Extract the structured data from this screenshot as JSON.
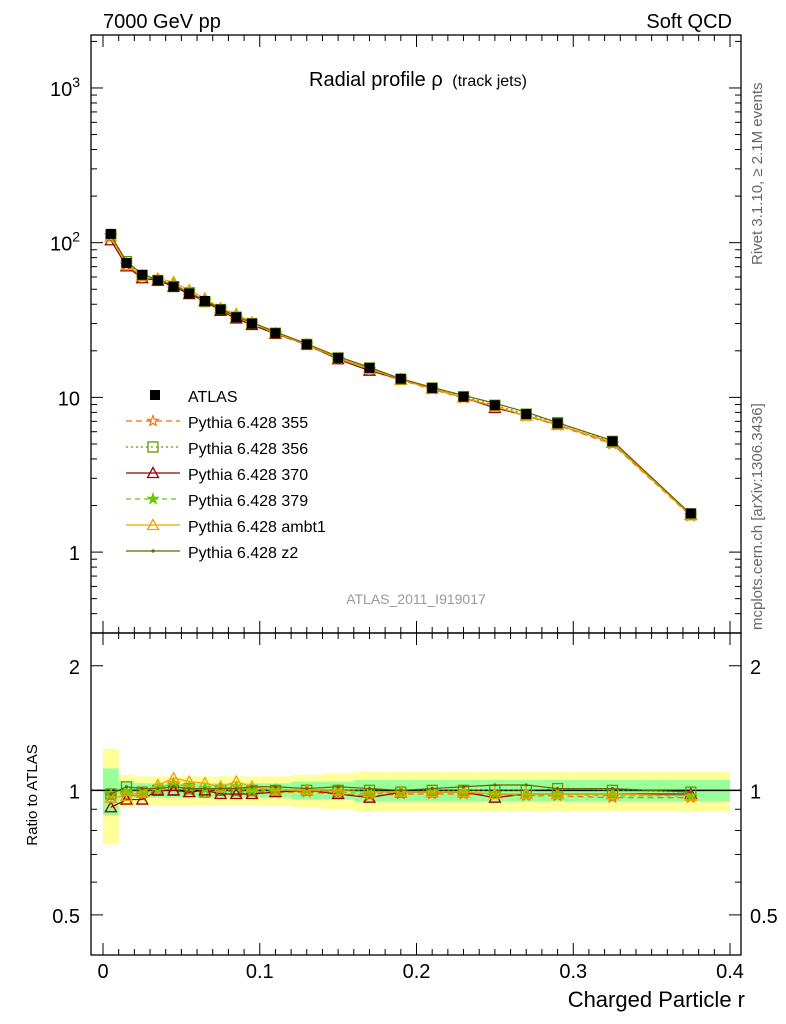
{
  "header": {
    "left": "7000 GeV pp",
    "right": "Soft QCD"
  },
  "side_labels": {
    "rivet": "Rivet 3.1.10, ≥ 2.1M events",
    "mcplots": "mcplots.cern.ch [arXiv:1306.3436]"
  },
  "chart_data": {
    "type": "line",
    "title": "Radial profile ρ",
    "title_suffix": "(track jets)",
    "analysis_label": "ATLAS_2011_I919017",
    "xlabel": "Charged Particle r",
    "ylabel_ratio": "Ratio to ATLAS",
    "xlim": [
      0,
      0.4
    ],
    "ylim_main": [
      0.3,
      2200
    ],
    "ylim_ratio": [
      0.4,
      2.4
    ],
    "y_scale_main": "log",
    "y_scale_ratio": "log",
    "x_ticks": [
      "0",
      "0.1",
      "0.2",
      "0.3",
      "0.4"
    ],
    "main_y_ticks": [
      {
        "value": 1,
        "label": "1"
      },
      {
        "value": 10,
        "label": "10"
      },
      {
        "value": 100,
        "label": "10",
        "exp": "2"
      },
      {
        "value": 1000,
        "label": "10",
        "exp": "3"
      }
    ],
    "ratio_y_ticks": [
      {
        "value": 0.5,
        "label": "0.5"
      },
      {
        "value": 1,
        "label": "1"
      },
      {
        "value": 2,
        "label": "2"
      }
    ],
    "legend_position": "left",
    "x": [
      0.005,
      0.015,
      0.025,
      0.035,
      0.045,
      0.055,
      0.065,
      0.075,
      0.085,
      0.095,
      0.11,
      0.13,
      0.15,
      0.17,
      0.19,
      0.21,
      0.23,
      0.25,
      0.27,
      0.29,
      0.325,
      0.375
    ],
    "x_bin_edges": [
      0,
      0.01,
      0.02,
      0.03,
      0.04,
      0.05,
      0.06,
      0.07,
      0.08,
      0.09,
      0.1,
      0.12,
      0.14,
      0.16,
      0.18,
      0.2,
      0.22,
      0.24,
      0.26,
      0.28,
      0.3,
      0.35,
      0.4
    ],
    "data": {
      "name": "ATLAS",
      "values": [
        114,
        74,
        62,
        57,
        52,
        47,
        42,
        37,
        33,
        30,
        26,
        22,
        18,
        15.5,
        13.2,
        11.5,
        10.1,
        8.9,
        7.8,
        6.8,
        5.2,
        1.78
      ],
      "band_inner": [
        0.13,
        0.05,
        0.04,
        0.04,
        0.04,
        0.04,
        0.04,
        0.04,
        0.04,
        0.04,
        0.04,
        0.05,
        0.05,
        0.06,
        0.06,
        0.06,
        0.06,
        0.06,
        0.06,
        0.06,
        0.06,
        0.06
      ],
      "band_outer": [
        0.26,
        0.09,
        0.08,
        0.08,
        0.08,
        0.08,
        0.08,
        0.08,
        0.08,
        0.08,
        0.08,
        0.09,
        0.1,
        0.11,
        0.11,
        0.11,
        0.11,
        0.11,
        0.11,
        0.11,
        0.11,
        0.11
      ],
      "color": "#000000"
    },
    "series": [
      {
        "name": "Pythia 6.428 355",
        "color": "#ff6600",
        "marker": "star",
        "dash": "6,4",
        "ratios": [
          0.97,
          0.97,
          0.97,
          1.0,
          1.03,
          1.0,
          0.99,
          1.0,
          0.99,
          0.99,
          0.99,
          0.99,
          0.98,
          0.97,
          0.98,
          0.98,
          0.98,
          0.98,
          0.97,
          0.97,
          0.96,
          0.96
        ]
      },
      {
        "name": "Pythia 6.428 356",
        "color": "#669900",
        "marker": "square-open",
        "dash": "2,3",
        "ratios": [
          0.98,
          1.02,
          0.99,
          1.0,
          1.0,
          1.01,
          0.99,
          1.0,
          1.0,
          1.0,
          1.0,
          1.0,
          1.0,
          1.0,
          0.99,
          1.0,
          1.0,
          1.0,
          1.0,
          1.01,
          1.0,
          0.99
        ]
      },
      {
        "name": "Pythia 6.428 370",
        "color": "#990000",
        "marker": "triangle-open",
        "dash": "",
        "ratios": [
          0.91,
          0.95,
          0.95,
          1.0,
          1.0,
          0.99,
          1.0,
          0.98,
          0.98,
          0.98,
          0.99,
          1.0,
          0.98,
          0.96,
          0.99,
          0.99,
          0.99,
          0.96,
          0.98,
          0.98,
          0.98,
          0.98
        ]
      },
      {
        "name": "Pythia 6.428 379",
        "color": "#66cc00",
        "marker": "star-filled",
        "dash": "5,4",
        "ratios": [
          0.98,
          0.99,
          0.98,
          1.01,
          1.04,
          1.02,
          1.01,
          1.01,
          1.02,
          1.0,
          1.0,
          1.0,
          0.99,
          0.98,
          0.99,
          0.99,
          0.99,
          0.98,
          0.97,
          0.98,
          0.97,
          0.97
        ]
      },
      {
        "name": "Pythia 6.428 ambt1",
        "color": "#f0a000",
        "marker": "triangle-open",
        "dash": "",
        "ratios": [
          0.96,
          0.97,
          0.99,
          1.03,
          1.07,
          1.05,
          1.04,
          1.02,
          1.05,
          1.02,
          1.0,
          1.0,
          1.0,
          0.99,
          0.99,
          0.99,
          0.99,
          0.98,
          0.98,
          0.98,
          0.98,
          0.97
        ]
      },
      {
        "name": "Pythia 6.428 z2",
        "color": "#666600",
        "marker": "dot",
        "dash": "",
        "ratios": [
          0.98,
          1.02,
          1.01,
          1.01,
          1.02,
          1.01,
          1.01,
          1.01,
          1.01,
          1.02,
          1.02,
          1.01,
          1.02,
          1.01,
          1.0,
          1.01,
          1.02,
          1.03,
          1.03,
          1.01,
          1.01,
          0.99
        ]
      }
    ],
    "band_colors": {
      "inner": "#99ff99",
      "outer": "#ffff99"
    }
  }
}
